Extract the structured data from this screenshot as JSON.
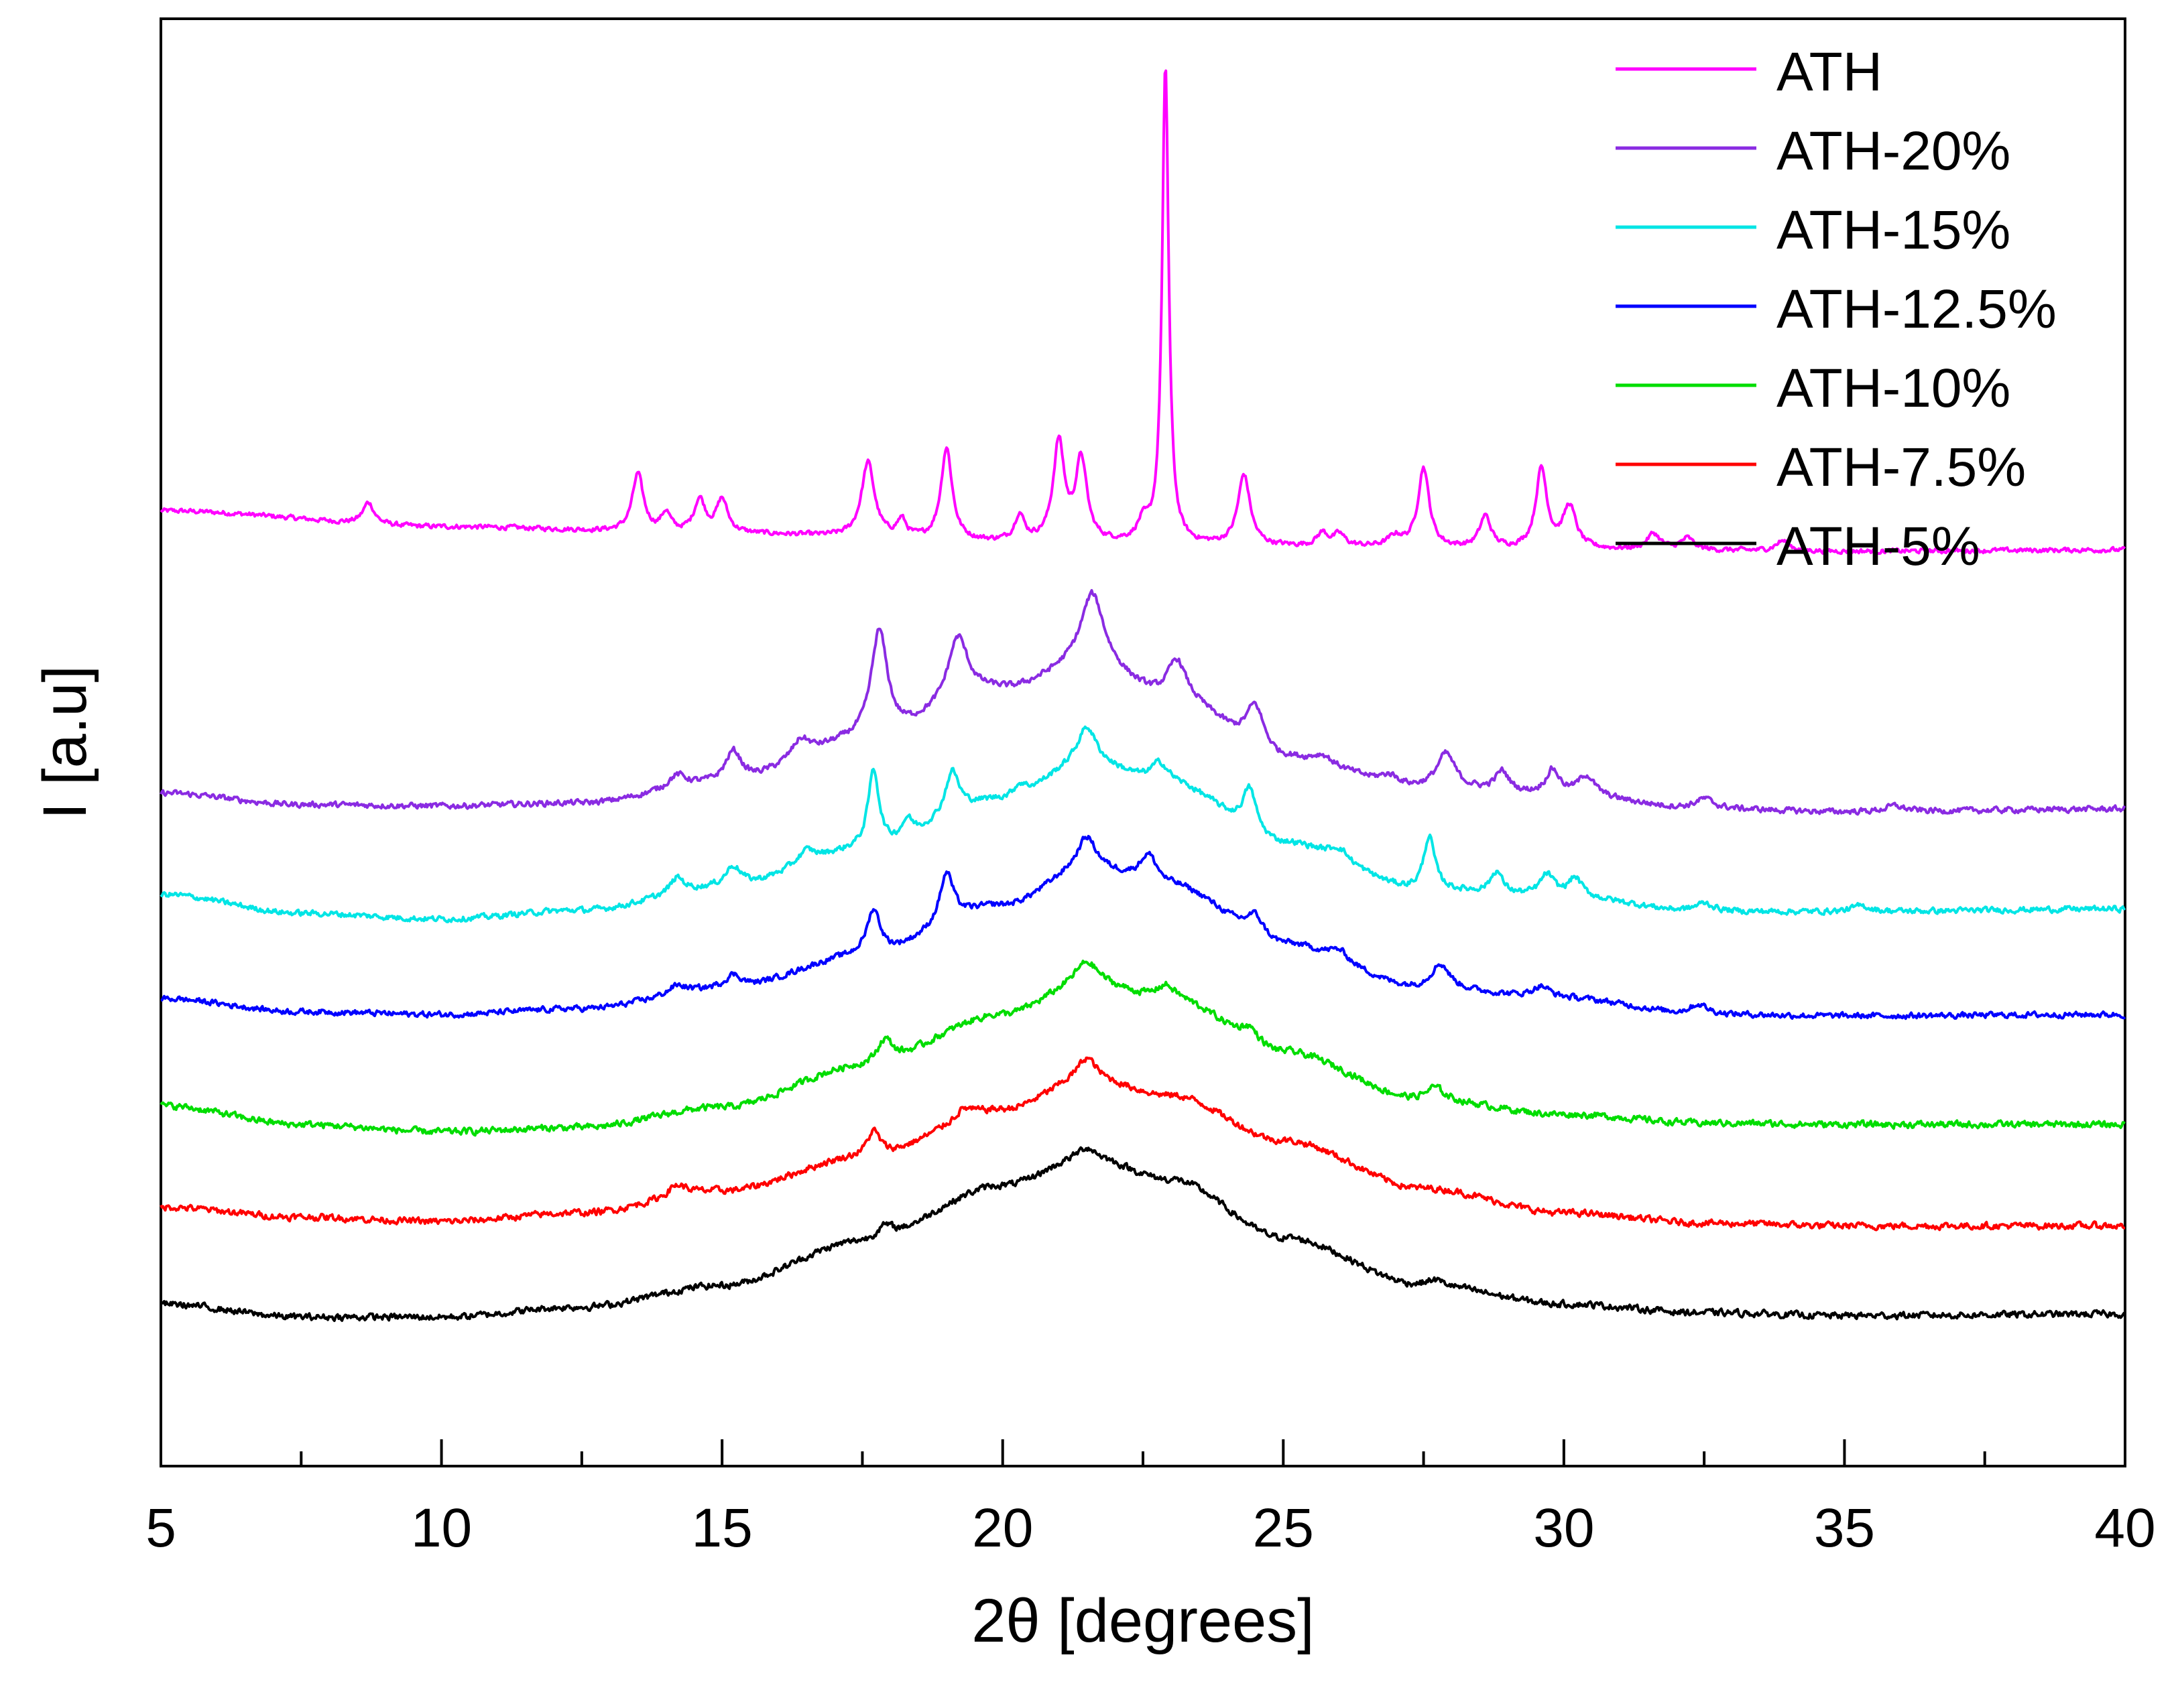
{
  "chart_data": {
    "type": "line",
    "title": "",
    "xlabel": "2θ [degrees]",
    "ylabel": "I [a.u]",
    "xlim": [
      5,
      40
    ],
    "xticks": [
      5,
      10,
      15,
      20,
      25,
      30,
      35,
      40
    ],
    "x_minor_step": 2.5,
    "y_ticks_shown": false,
    "grid": false,
    "legend_position": "top-right",
    "y_units": "arbitrary (stacked offsets)",
    "ylim": [
      0,
      100
    ],
    "series": [
      {
        "name": "ATH",
        "color": "#ff00ff",
        "baseline": [
          [
            5,
            66.0
          ],
          [
            10,
            64.9
          ],
          [
            15,
            64.4
          ],
          [
            20,
            63.8
          ],
          [
            25,
            63.5
          ],
          [
            30,
            63.3
          ],
          [
            35,
            63.2
          ],
          [
            40,
            63.3
          ]
        ],
        "peaks": [
          [
            8.7,
            1.5,
            0.12
          ],
          [
            13.5,
            4.0,
            0.12
          ],
          [
            14.0,
            1.3,
            0.1
          ],
          [
            14.6,
            2.3,
            0.12
          ],
          [
            15.0,
            2.3,
            0.12
          ],
          [
            17.6,
            5.2,
            0.14
          ],
          [
            18.2,
            1.2,
            0.1
          ],
          [
            19.0,
            6.4,
            0.12
          ],
          [
            20.3,
            1.8,
            0.1
          ],
          [
            21.0,
            6.8,
            0.12
          ],
          [
            21.4,
            5.6,
            0.12
          ],
          [
            22.5,
            1.2,
            0.12
          ],
          [
            22.9,
            33.0,
            0.07
          ],
          [
            24.3,
            4.9,
            0.13
          ],
          [
            25.7,
            0.9,
            0.12
          ],
          [
            26.0,
            0.8,
            0.12
          ],
          [
            27.0,
            0.7,
            0.15
          ],
          [
            27.5,
            5.5,
            0.12
          ],
          [
            28.6,
            2.2,
            0.12
          ],
          [
            29.6,
            5.5,
            0.12
          ],
          [
            30.1,
            2.9,
            0.14
          ],
          [
            31.6,
            1.1,
            0.14
          ],
          [
            32.2,
            0.8,
            0.14
          ],
          [
            33.9,
            0.7,
            0.15
          ]
        ],
        "noise": 0.25
      },
      {
        "name": "ATH-20%",
        "color": "#8a2be2",
        "baseline": [
          [
            5,
            46.5
          ],
          [
            7.5,
            45.7
          ],
          [
            10,
            45.6
          ],
          [
            12.5,
            45.8
          ],
          [
            15,
            47.1
          ],
          [
            17.5,
            50.0
          ],
          [
            20,
            53.5
          ],
          [
            21.5,
            55.2
          ],
          [
            23,
            53.0
          ],
          [
            25,
            48.8
          ],
          [
            27.5,
            46.8
          ],
          [
            30,
            46.3
          ],
          [
            32.5,
            45.4
          ],
          [
            35,
            45.2
          ],
          [
            40,
            45.4
          ]
        ],
        "peaks": [
          [
            14.2,
            0.9,
            0.2
          ],
          [
            15.2,
            2.2,
            0.18
          ],
          [
            16.4,
            1.3,
            0.2
          ],
          [
            17.8,
            7.5,
            0.18
          ],
          [
            19.2,
            4.5,
            0.22
          ],
          [
            21.6,
            5.0,
            0.25
          ],
          [
            23.1,
            2.6,
            0.2
          ],
          [
            24.5,
            3.1,
            0.2
          ],
          [
            25.7,
            0.6,
            0.2
          ],
          [
            26.9,
            0.6,
            0.2
          ],
          [
            27.9,
            2.4,
            0.2
          ],
          [
            28.9,
            1.4,
            0.15
          ],
          [
            29.8,
            1.7,
            0.15
          ],
          [
            30.4,
            1.4,
            0.18
          ],
          [
            32.5,
            0.7,
            0.2
          ],
          [
            35.9,
            0.4,
            0.2
          ]
        ],
        "noise": 0.3
      },
      {
        "name": "ATH-15%",
        "color": "#00e5e5",
        "baseline": [
          [
            5,
            39.5
          ],
          [
            7.5,
            38.2
          ],
          [
            10,
            37.8
          ],
          [
            12.5,
            38.4
          ],
          [
            15,
            39.9
          ],
          [
            17.5,
            42.5
          ],
          [
            20,
            46.0
          ],
          [
            21.5,
            48.5
          ],
          [
            23,
            47.0
          ],
          [
            25,
            43.0
          ],
          [
            27.5,
            39.8
          ],
          [
            30,
            39.3
          ],
          [
            32.5,
            38.3
          ],
          [
            35,
            38.3
          ],
          [
            40,
            38.5
          ]
        ],
        "peaks": [
          [
            14.2,
            1.1,
            0.15
          ],
          [
            15.2,
            1.5,
            0.18
          ],
          [
            16.5,
            0.9,
            0.2
          ],
          [
            17.7,
            5.5,
            0.12
          ],
          [
            18.3,
            1.2,
            0.12
          ],
          [
            19.1,
            3.0,
            0.15
          ],
          [
            20.3,
            0.8,
            0.15
          ],
          [
            21.5,
            2.5,
            0.2
          ],
          [
            22.8,
            1.5,
            0.2
          ],
          [
            24.4,
            3.0,
            0.15
          ],
          [
            26.0,
            0.8,
            0.2
          ],
          [
            27.6,
            3.7,
            0.12
          ],
          [
            28.8,
            1.5,
            0.13
          ],
          [
            29.7,
            1.5,
            0.15
          ],
          [
            30.2,
            1.3,
            0.15
          ],
          [
            32.5,
            0.6,
            0.2
          ],
          [
            35.3,
            0.4,
            0.2
          ]
        ],
        "noise": 0.3
      },
      {
        "name": "ATH-12.5%",
        "color": "#0000ff",
        "baseline": [
          [
            5,
            32.3
          ],
          [
            7.5,
            31.4
          ],
          [
            10,
            31.2
          ],
          [
            12.5,
            31.6
          ],
          [
            15,
            32.9
          ],
          [
            17.5,
            35.2
          ],
          [
            20,
            38.7
          ],
          [
            21.5,
            41.2
          ],
          [
            23,
            40.0
          ],
          [
            25,
            36.0
          ],
          [
            27.5,
            33.0
          ],
          [
            30,
            32.3
          ],
          [
            32.5,
            31.2
          ],
          [
            35,
            31.1
          ],
          [
            40,
            31.2
          ]
        ],
        "peaks": [
          [
            14.2,
            0.6,
            0.2
          ],
          [
            15.2,
            1.0,
            0.2
          ],
          [
            17.7,
            3.2,
            0.15
          ],
          [
            19.0,
            3.5,
            0.15
          ],
          [
            21.5,
            2.2,
            0.2
          ],
          [
            22.6,
            2.0,
            0.2
          ],
          [
            24.5,
            1.5,
            0.2
          ],
          [
            26.0,
            0.7,
            0.2
          ],
          [
            27.8,
            1.7,
            0.2
          ],
          [
            29.6,
            0.8,
            0.2
          ],
          [
            32.4,
            0.7,
            0.2
          ]
        ],
        "noise": 0.3
      },
      {
        "name": "ATH-10%",
        "color": "#00dd00",
        "baseline": [
          [
            5,
            24.9
          ],
          [
            7.5,
            23.6
          ],
          [
            10,
            23.1
          ],
          [
            12.5,
            23.4
          ],
          [
            15,
            24.8
          ],
          [
            17.5,
            27.6
          ],
          [
            20,
            31.2
          ],
          [
            21.5,
            33.3
          ],
          [
            23,
            32.2
          ],
          [
            25,
            28.6
          ],
          [
            27.5,
            25.3
          ],
          [
            30,
            24.3
          ],
          [
            32.5,
            23.7
          ],
          [
            35,
            23.6
          ],
          [
            40,
            23.6
          ]
        ],
        "peaks": [
          [
            17.9,
            1.7,
            0.18
          ],
          [
            21.5,
            1.5,
            0.25
          ],
          [
            22.9,
            1.0,
            0.2
          ],
          [
            24.4,
            1.0,
            0.2
          ],
          [
            27.7,
            0.9,
            0.2
          ]
        ],
        "noise": 0.35
      },
      {
        "name": "ATH-7.5%",
        "color": "#ff0000",
        "baseline": [
          [
            5,
            17.9
          ],
          [
            7.5,
            17.2
          ],
          [
            10,
            16.9
          ],
          [
            12.5,
            17.5
          ],
          [
            15,
            19.0
          ],
          [
            17.5,
            21.3
          ],
          [
            20,
            24.6
          ],
          [
            21.5,
            26.7
          ],
          [
            23,
            25.6
          ],
          [
            25,
            22.5
          ],
          [
            27.5,
            19.2
          ],
          [
            30,
            17.5
          ],
          [
            32.5,
            16.8
          ],
          [
            35,
            16.6
          ],
          [
            40,
            16.6
          ]
        ],
        "peaks": [
          [
            14.2,
            0.8,
            0.2
          ],
          [
            17.7,
            1.8,
            0.15
          ],
          [
            19.3,
            0.7,
            0.2
          ],
          [
            21.5,
            1.5,
            0.2
          ]
        ],
        "noise": 0.35
      },
      {
        "name": "ATH-5%",
        "color": "#000000",
        "baseline": [
          [
            5,
            11.2
          ],
          [
            7.5,
            10.3
          ],
          [
            10,
            10.3
          ],
          [
            12.5,
            11.0
          ],
          [
            15,
            12.5
          ],
          [
            17.5,
            15.5
          ],
          [
            20,
            19.4
          ],
          [
            21.5,
            21.3
          ],
          [
            23,
            19.8
          ],
          [
            25,
            15.8
          ],
          [
            27.5,
            12.5
          ],
          [
            30,
            11.2
          ],
          [
            32.5,
            10.6
          ],
          [
            35,
            10.4
          ],
          [
            40,
            10.5
          ]
        ],
        "peaks": [
          [
            17.9,
            0.9,
            0.2
          ],
          [
            21.5,
            0.7,
            0.2
          ],
          [
            27.7,
            0.4,
            0.2
          ]
        ],
        "noise": 0.35
      }
    ]
  }
}
